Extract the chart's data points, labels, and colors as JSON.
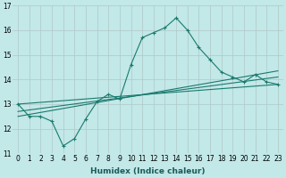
{
  "xlabel": "Humidex (Indice chaleur)",
  "xlim": [
    -0.5,
    23.5
  ],
  "ylim": [
    11,
    17
  ],
  "yticks": [
    11,
    12,
    13,
    14,
    15,
    16,
    17
  ],
  "xticks": [
    0,
    1,
    2,
    3,
    4,
    5,
    6,
    7,
    8,
    9,
    10,
    11,
    12,
    13,
    14,
    15,
    16,
    17,
    18,
    19,
    20,
    21,
    22,
    23
  ],
  "background_color": "#c2e8e8",
  "grid_color": "#b0c8c8",
  "line_color": "#1a7a6e",
  "series_main": [
    13.0,
    12.5,
    12.5,
    12.3,
    11.3,
    11.6,
    12.4,
    13.1,
    13.4,
    13.2,
    14.6,
    15.7,
    15.9,
    16.1,
    16.5,
    16.0,
    15.3,
    14.8,
    14.3,
    14.1,
    13.9,
    14.2,
    13.9,
    13.8
  ],
  "trend1_x": [
    0,
    23
  ],
  "trend1_y": [
    13.0,
    13.8
  ],
  "trend2_x": [
    0,
    23
  ],
  "trend2_y": [
    12.7,
    14.1
  ],
  "trend3_x": [
    0,
    23
  ],
  "trend3_y": [
    12.5,
    14.35
  ],
  "xlabel_fontsize": 6.5,
  "tick_fontsize": 5.5
}
